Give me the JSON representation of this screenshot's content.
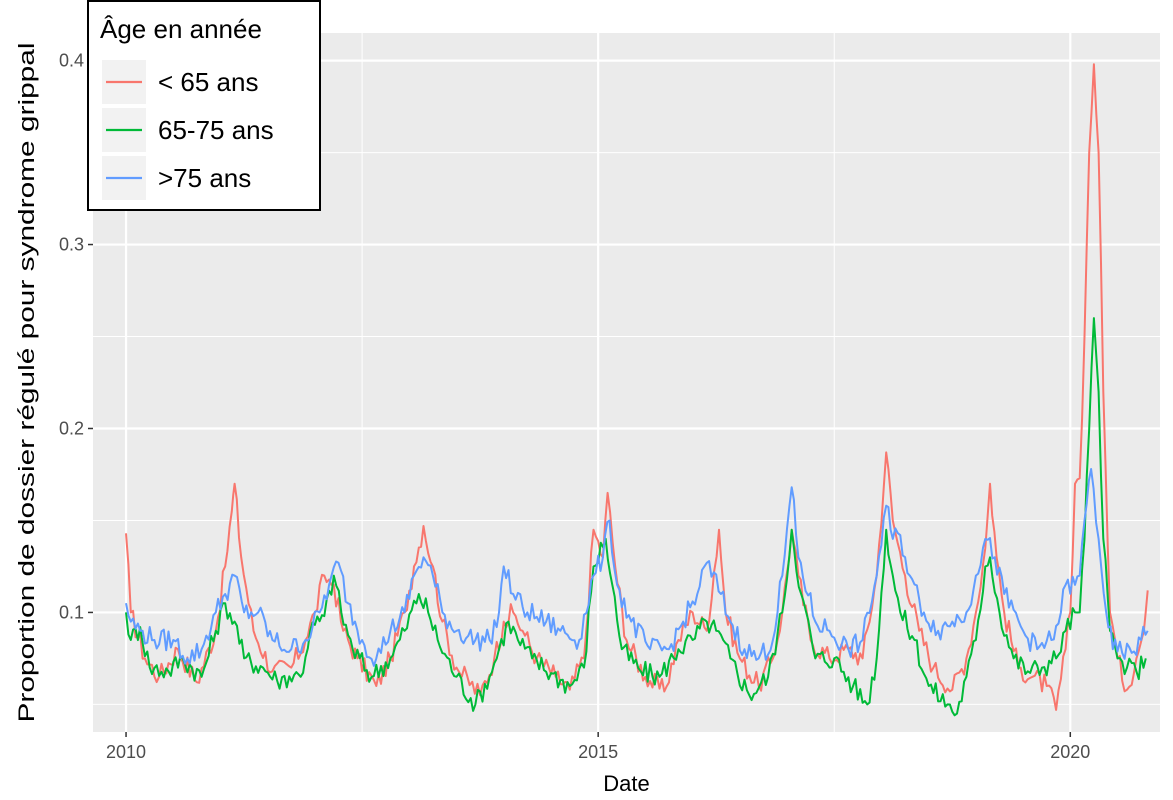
{
  "chart_data": {
    "type": "line",
    "xlabel": "Date",
    "ylabel": "Proportion de dossier régulé pour syndrome grippal",
    "xlim": [
      2009.65,
      2020.95
    ],
    "ylim": [
      0.035,
      0.415
    ],
    "x_ticks": [
      2010,
      2015,
      2020
    ],
    "x_tick_labels": [
      "2010",
      "2015",
      "2020"
    ],
    "y_ticks": [
      0.1,
      0.2,
      0.3,
      0.4
    ],
    "y_tick_labels": [
      "0.1",
      "0.2",
      "0.3",
      "0.4"
    ],
    "grid": true,
    "background": "#ebebeb",
    "legend": {
      "title": "Âge en année",
      "position": "top-left",
      "entries": [
        "< 65 ans",
        "65-75 ans",
        ">75 ans"
      ]
    },
    "series": [
      {
        "name": "< 65 ans",
        "color": "#F8766D",
        "points": [
          [
            2010.0,
            0.143
          ],
          [
            2010.05,
            0.1
          ],
          [
            2010.2,
            0.075
          ],
          [
            2010.35,
            0.065
          ],
          [
            2010.55,
            0.08
          ],
          [
            2010.75,
            0.062
          ],
          [
            2010.95,
            0.09
          ],
          [
            2011.05,
            0.125
          ],
          [
            2011.12,
            0.155
          ],
          [
            2011.15,
            0.17
          ],
          [
            2011.22,
            0.13
          ],
          [
            2011.35,
            0.09
          ],
          [
            2011.55,
            0.068
          ],
          [
            2011.75,
            0.07
          ],
          [
            2011.9,
            0.085
          ],
          [
            2012.0,
            0.1
          ],
          [
            2012.1,
            0.12
          ],
          [
            2012.2,
            0.115
          ],
          [
            2012.3,
            0.09
          ],
          [
            2012.45,
            0.075
          ],
          [
            2012.65,
            0.06
          ],
          [
            2012.8,
            0.075
          ],
          [
            2012.95,
            0.1
          ],
          [
            2013.05,
            0.125
          ],
          [
            2013.15,
            0.147
          ],
          [
            2013.25,
            0.125
          ],
          [
            2013.35,
            0.095
          ],
          [
            2013.5,
            0.07
          ],
          [
            2013.75,
            0.055
          ],
          [
            2013.9,
            0.075
          ],
          [
            2014.0,
            0.095
          ],
          [
            2014.1,
            0.1
          ],
          [
            2014.2,
            0.09
          ],
          [
            2014.35,
            0.075
          ],
          [
            2014.55,
            0.065
          ],
          [
            2014.7,
            0.058
          ],
          [
            2014.85,
            0.075
          ],
          [
            2014.95,
            0.145
          ],
          [
            2015.05,
            0.13
          ],
          [
            2015.1,
            0.165
          ],
          [
            2015.18,
            0.125
          ],
          [
            2015.3,
            0.085
          ],
          [
            2015.5,
            0.065
          ],
          [
            2015.7,
            0.057
          ],
          [
            2015.85,
            0.085
          ],
          [
            2016.0,
            0.1
          ],
          [
            2016.15,
            0.09
          ],
          [
            2016.28,
            0.145
          ],
          [
            2016.35,
            0.1
          ],
          [
            2016.5,
            0.075
          ],
          [
            2016.7,
            0.06
          ],
          [
            2016.85,
            0.075
          ],
          [
            2016.95,
            0.1
          ],
          [
            2017.05,
            0.145
          ],
          [
            2017.12,
            0.12
          ],
          [
            2017.25,
            0.085
          ],
          [
            2017.45,
            0.075
          ],
          [
            2017.65,
            0.08
          ],
          [
            2017.8,
            0.075
          ],
          [
            2017.95,
            0.12
          ],
          [
            2018.05,
            0.187
          ],
          [
            2018.12,
            0.15
          ],
          [
            2018.25,
            0.12
          ],
          [
            2018.4,
            0.09
          ],
          [
            2018.55,
            0.07
          ],
          [
            2018.75,
            0.058
          ],
          [
            2018.9,
            0.075
          ],
          [
            2019.0,
            0.1
          ],
          [
            2019.1,
            0.135
          ],
          [
            2019.15,
            0.17
          ],
          [
            2019.22,
            0.13
          ],
          [
            2019.3,
            0.1
          ],
          [
            2019.45,
            0.07
          ],
          [
            2019.6,
            0.065
          ],
          [
            2019.75,
            0.06
          ],
          [
            2019.85,
            0.047
          ],
          [
            2019.95,
            0.08
          ],
          [
            2020.0,
            0.1
          ],
          [
            2020.05,
            0.17
          ],
          [
            2020.1,
            0.173
          ],
          [
            2020.15,
            0.25
          ],
          [
            2020.2,
            0.35
          ],
          [
            2020.25,
            0.398
          ],
          [
            2020.3,
            0.35
          ],
          [
            2020.35,
            0.22
          ],
          [
            2020.42,
            0.1
          ],
          [
            2020.5,
            0.075
          ],
          [
            2020.6,
            0.058
          ],
          [
            2020.7,
            0.075
          ],
          [
            2020.78,
            0.09
          ],
          [
            2020.82,
            0.112
          ]
        ]
      },
      {
        "name": "65-75 ans",
        "color": "#00BA38",
        "points": [
          [
            2010.0,
            0.1
          ],
          [
            2010.05,
            0.085
          ],
          [
            2010.15,
            0.092
          ],
          [
            2010.25,
            0.07
          ],
          [
            2010.45,
            0.068
          ],
          [
            2010.6,
            0.075
          ],
          [
            2010.8,
            0.065
          ],
          [
            2010.95,
            0.09
          ],
          [
            2011.05,
            0.105
          ],
          [
            2011.15,
            0.095
          ],
          [
            2011.25,
            0.075
          ],
          [
            2011.45,
            0.07
          ],
          [
            2011.6,
            0.063
          ],
          [
            2011.78,
            0.066
          ],
          [
            2011.85,
            0.065
          ],
          [
            2011.95,
            0.09
          ],
          [
            2012.1,
            0.098
          ],
          [
            2012.2,
            0.12
          ],
          [
            2012.28,
            0.1
          ],
          [
            2012.4,
            0.08
          ],
          [
            2012.6,
            0.065
          ],
          [
            2012.8,
            0.075
          ],
          [
            2012.95,
            0.09
          ],
          [
            2013.1,
            0.11
          ],
          [
            2013.2,
            0.1
          ],
          [
            2013.3,
            0.085
          ],
          [
            2013.5,
            0.065
          ],
          [
            2013.7,
            0.05
          ],
          [
            2013.85,
            0.065
          ],
          [
            2013.95,
            0.08
          ],
          [
            2014.05,
            0.095
          ],
          [
            2014.15,
            0.085
          ],
          [
            2014.3,
            0.075
          ],
          [
            2014.5,
            0.067
          ],
          [
            2014.7,
            0.06
          ],
          [
            2014.85,
            0.07
          ],
          [
            2014.95,
            0.125
          ],
          [
            2015.08,
            0.14
          ],
          [
            2015.15,
            0.115
          ],
          [
            2015.25,
            0.08
          ],
          [
            2015.45,
            0.068
          ],
          [
            2015.65,
            0.065
          ],
          [
            2015.85,
            0.08
          ],
          [
            2016.0,
            0.085
          ],
          [
            2016.15,
            0.095
          ],
          [
            2016.25,
            0.09
          ],
          [
            2016.4,
            0.075
          ],
          [
            2016.6,
            0.055
          ],
          [
            2016.8,
            0.065
          ],
          [
            2016.95,
            0.1
          ],
          [
            2017.05,
            0.145
          ],
          [
            2017.15,
            0.11
          ],
          [
            2017.3,
            0.075
          ],
          [
            2017.5,
            0.075
          ],
          [
            2017.7,
            0.06
          ],
          [
            2017.85,
            0.05
          ],
          [
            2017.95,
            0.075
          ],
          [
            2018.05,
            0.145
          ],
          [
            2018.12,
            0.12
          ],
          [
            2018.2,
            0.1
          ],
          [
            2018.35,
            0.085
          ],
          [
            2018.5,
            0.06
          ],
          [
            2018.7,
            0.05
          ],
          [
            2018.8,
            0.045
          ],
          [
            2018.9,
            0.065
          ],
          [
            2019.0,
            0.085
          ],
          [
            2019.1,
            0.125
          ],
          [
            2019.15,
            0.13
          ],
          [
            2019.25,
            0.1
          ],
          [
            2019.4,
            0.075
          ],
          [
            2019.55,
            0.068
          ],
          [
            2019.7,
            0.07
          ],
          [
            2019.85,
            0.075
          ],
          [
            2019.95,
            0.09
          ],
          [
            2020.05,
            0.1
          ],
          [
            2020.1,
            0.1
          ],
          [
            2020.15,
            0.14
          ],
          [
            2020.2,
            0.2
          ],
          [
            2020.25,
            0.26
          ],
          [
            2020.3,
            0.22
          ],
          [
            2020.35,
            0.14
          ],
          [
            2020.42,
            0.09
          ],
          [
            2020.5,
            0.075
          ],
          [
            2020.6,
            0.07
          ],
          [
            2020.7,
            0.068
          ],
          [
            2020.8,
            0.075
          ]
        ]
      },
      {
        "name": ">75 ans",
        "color": "#619CFF",
        "points": [
          [
            2010.0,
            0.105
          ],
          [
            2010.05,
            0.095
          ],
          [
            2010.15,
            0.09
          ],
          [
            2010.3,
            0.085
          ],
          [
            2010.5,
            0.085
          ],
          [
            2010.65,
            0.075
          ],
          [
            2010.8,
            0.08
          ],
          [
            2010.95,
            0.1
          ],
          [
            2011.05,
            0.11
          ],
          [
            2011.15,
            0.12
          ],
          [
            2011.25,
            0.1
          ],
          [
            2011.4,
            0.1
          ],
          [
            2011.55,
            0.085
          ],
          [
            2011.75,
            0.08
          ],
          [
            2011.9,
            0.085
          ],
          [
            2012.05,
            0.1
          ],
          [
            2012.15,
            0.115
          ],
          [
            2012.25,
            0.127
          ],
          [
            2012.35,
            0.105
          ],
          [
            2012.5,
            0.085
          ],
          [
            2012.65,
            0.075
          ],
          [
            2012.8,
            0.09
          ],
          [
            2012.95,
            0.1
          ],
          [
            2013.05,
            0.12
          ],
          [
            2013.15,
            0.13
          ],
          [
            2013.25,
            0.12
          ],
          [
            2013.35,
            0.1
          ],
          [
            2013.5,
            0.09
          ],
          [
            2013.7,
            0.085
          ],
          [
            2013.85,
            0.085
          ],
          [
            2013.95,
            0.1
          ],
          [
            2014.0,
            0.125
          ],
          [
            2014.1,
            0.11
          ],
          [
            2014.25,
            0.1
          ],
          [
            2014.45,
            0.095
          ],
          [
            2014.6,
            0.09
          ],
          [
            2014.8,
            0.085
          ],
          [
            2014.95,
            0.12
          ],
          [
            2015.05,
            0.13
          ],
          [
            2015.12,
            0.15
          ],
          [
            2015.2,
            0.115
          ],
          [
            2015.35,
            0.095
          ],
          [
            2015.55,
            0.08
          ],
          [
            2015.75,
            0.08
          ],
          [
            2015.9,
            0.095
          ],
          [
            2016.05,
            0.11
          ],
          [
            2016.15,
            0.127
          ],
          [
            2016.3,
            0.11
          ],
          [
            2016.4,
            0.095
          ],
          [
            2016.55,
            0.08
          ],
          [
            2016.7,
            0.075
          ],
          [
            2016.85,
            0.085
          ],
          [
            2016.95,
            0.12
          ],
          [
            2017.05,
            0.168
          ],
          [
            2017.12,
            0.13
          ],
          [
            2017.3,
            0.095
          ],
          [
            2017.45,
            0.09
          ],
          [
            2017.65,
            0.08
          ],
          [
            2017.8,
            0.085
          ],
          [
            2017.95,
            0.12
          ],
          [
            2018.05,
            0.158
          ],
          [
            2018.12,
            0.14
          ],
          [
            2018.2,
            0.142
          ],
          [
            2018.3,
            0.12
          ],
          [
            2018.45,
            0.1
          ],
          [
            2018.6,
            0.09
          ],
          [
            2018.75,
            0.095
          ],
          [
            2018.9,
            0.1
          ],
          [
            2019.0,
            0.12
          ],
          [
            2019.1,
            0.14
          ],
          [
            2019.2,
            0.13
          ],
          [
            2019.3,
            0.11
          ],
          [
            2019.5,
            0.09
          ],
          [
            2019.65,
            0.08
          ],
          [
            2019.8,
            0.085
          ],
          [
            2019.9,
            0.1
          ],
          [
            2019.95,
            0.115
          ],
          [
            2020.05,
            0.115
          ],
          [
            2020.1,
            0.12
          ],
          [
            2020.15,
            0.15
          ],
          [
            2020.22,
            0.178
          ],
          [
            2020.3,
            0.14
          ],
          [
            2020.38,
            0.1
          ],
          [
            2020.45,
            0.08
          ],
          [
            2020.55,
            0.078
          ],
          [
            2020.65,
            0.078
          ],
          [
            2020.75,
            0.085
          ],
          [
            2020.82,
            0.09
          ]
        ]
      }
    ]
  }
}
